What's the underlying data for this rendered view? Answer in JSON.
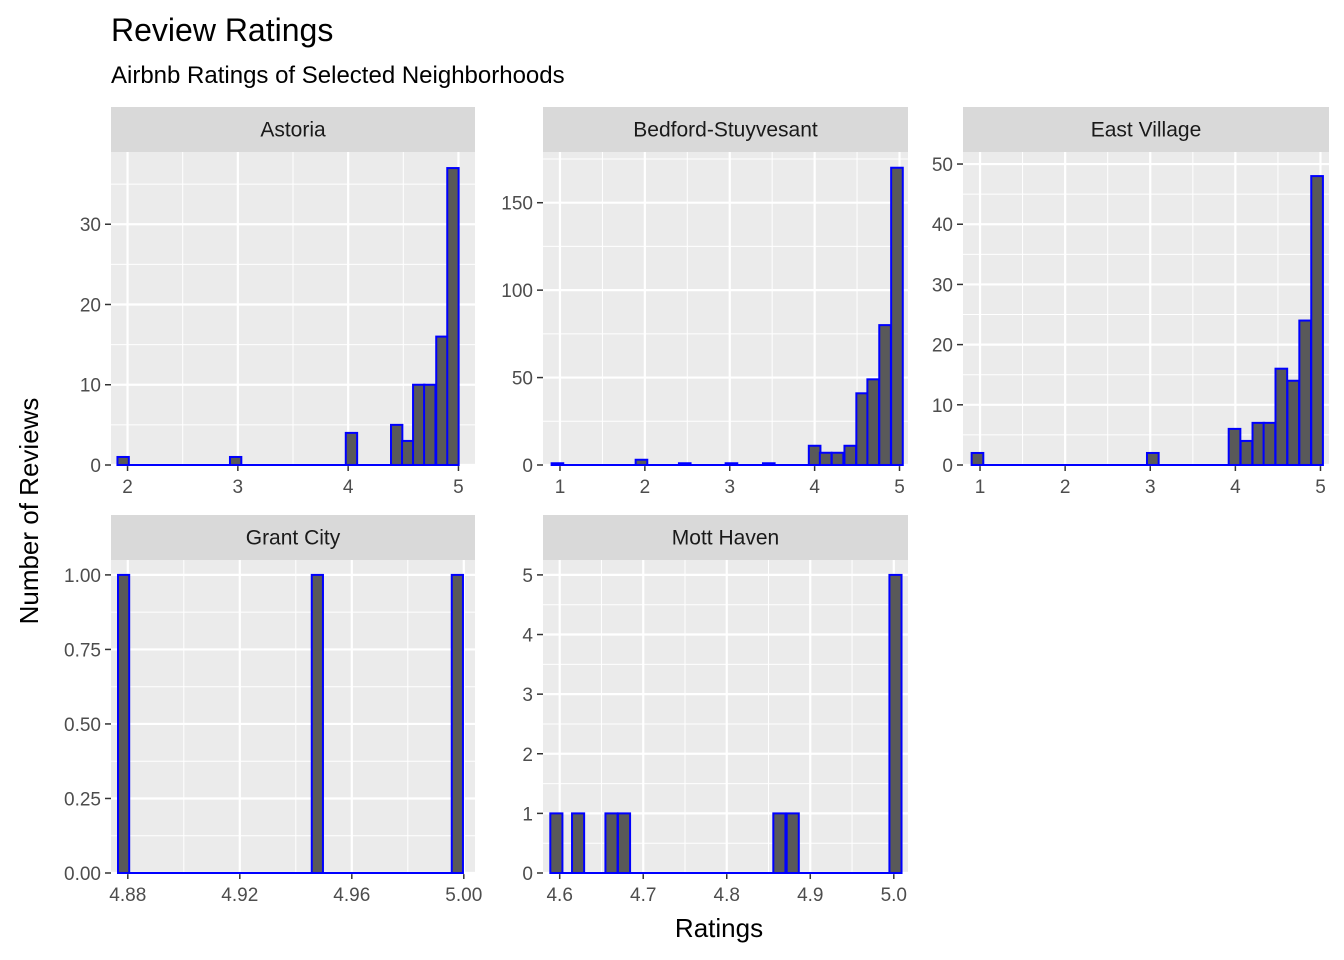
{
  "chart_data": {
    "type": "bar",
    "title": "Review Ratings",
    "subtitle": "Airbnb Ratings of Selected Neighborhoods",
    "xlabel": "Ratings",
    "ylabel": "Number of Reviews",
    "grid": true,
    "colors": {
      "fill": "#595959",
      "outline": "#0000ff",
      "panel": "#ebebeb",
      "strip": "#d9d9d9",
      "gridline": "#ffffff"
    },
    "facets": [
      {
        "name": "Astoria",
        "xlim": [
          1.85,
          5.15
        ],
        "ylim": [
          0,
          39
        ],
        "xticks": [
          2,
          3,
          4,
          5
        ],
        "xtick_labels": [
          "2",
          "3",
          "4",
          "5"
        ],
        "yticks": [
          0,
          10,
          20,
          30
        ],
        "ytick_labels": [
          "0",
          "10",
          "20",
          "30"
        ],
        "x": [
          1.96,
          2.98,
          4.03,
          4.44,
          4.54,
          4.64,
          4.74,
          4.85,
          4.95
        ],
        "values": [
          1,
          1,
          4,
          5,
          3,
          10,
          10,
          16,
          37
        ],
        "bin_width": 0.103,
        "baseline": [
          1.91,
          5.0
        ]
      },
      {
        "name": "Bedford-Stuyvesant",
        "xlim": [
          0.8,
          5.1
        ],
        "ylim": [
          0,
          179
        ],
        "xticks": [
          1,
          2,
          3,
          4,
          5
        ],
        "xtick_labels": [
          "1",
          "2",
          "3",
          "4",
          "5"
        ],
        "yticks": [
          0,
          50,
          100,
          150
        ],
        "ytick_labels": [
          "0",
          "50",
          "100",
          "150"
        ],
        "x": [
          0.97,
          1.96,
          2.47,
          3.02,
          3.46,
          4.0,
          4.13,
          4.27,
          4.42,
          4.56,
          4.69,
          4.83,
          4.97
        ],
        "values": [
          1,
          3,
          1,
          1,
          1,
          11,
          7,
          7,
          11,
          41,
          49,
          80,
          170
        ],
        "bin_width": 0.137,
        "baseline": [
          0.9,
          5.0
        ]
      },
      {
        "name": "East Village",
        "xlim": [
          0.8,
          5.1
        ],
        "ylim": [
          0,
          52
        ],
        "xticks": [
          1,
          2,
          3,
          4,
          5
        ],
        "xtick_labels": [
          "1",
          "2",
          "3",
          "4",
          "5"
        ],
        "yticks": [
          0,
          10,
          20,
          30,
          40,
          50
        ],
        "ytick_labels": [
          "0",
          "10",
          "20",
          "30",
          "40",
          "50"
        ],
        "x": [
          0.97,
          3.03,
          3.99,
          4.13,
          4.27,
          4.4,
          4.54,
          4.68,
          4.82,
          4.96
        ],
        "values": [
          2,
          2,
          6,
          4,
          7,
          7,
          16,
          14,
          24,
          48
        ],
        "bin_width": 0.137,
        "baseline": [
          0.9,
          5.0
        ]
      },
      {
        "name": "Grant City",
        "xlim": [
          4.874,
          5.004
        ],
        "ylim": [
          0,
          1.05
        ],
        "xticks": [
          4.88,
          4.92,
          4.96,
          5.0
        ],
        "xtick_labels": [
          "4.88",
          "4.92",
          "4.96",
          "5.00"
        ],
        "yticks": [
          0,
          0.25,
          0.5,
          0.75,
          1.0
        ],
        "ytick_labels": [
          "0.00",
          "0.25",
          "0.50",
          "0.75",
          "1.00"
        ],
        "x": [
          4.8785,
          4.9477,
          4.9977
        ],
        "values": [
          1,
          1,
          1
        ],
        "bin_width": 0.004,
        "baseline": [
          4.8765,
          4.9997
        ]
      },
      {
        "name": "Mott Haven",
        "xlim": [
          4.58,
          5.017
        ],
        "ylim": [
          0,
          5.25
        ],
        "xticks": [
          4.6,
          4.7,
          4.8,
          4.9,
          5.0
        ],
        "xtick_labels": [
          "4.6",
          "4.7",
          "4.8",
          "4.9",
          "5.0"
        ],
        "yticks": [
          0,
          1,
          2,
          3,
          4,
          5
        ],
        "ytick_labels": [
          "0",
          "1",
          "2",
          "3",
          "4",
          "5"
        ],
        "x": [
          4.596,
          4.622,
          4.662,
          4.677,
          4.863,
          4.879,
          5.002
        ],
        "values": [
          1,
          1,
          1,
          1,
          1,
          1,
          5
        ],
        "bin_width": 0.0145,
        "baseline": [
          4.589,
          5.009
        ]
      }
    ]
  }
}
